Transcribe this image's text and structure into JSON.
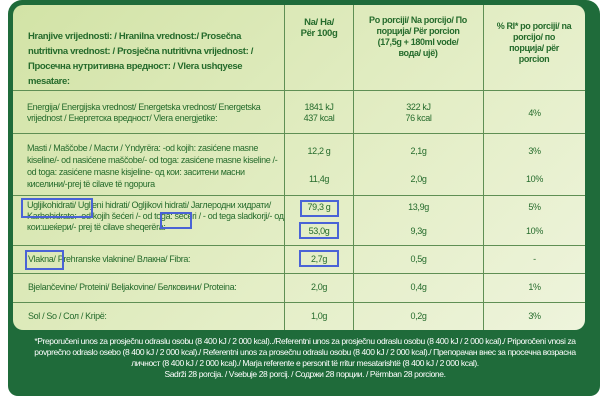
{
  "header": {
    "label": "Hranjive vrijednosti: / Hranilna  vrednost:/ Prosečna nutritivna  vrednost: / Prosječna nutritivna  vrijednost: / Просечна нутритивна  вредност: / Vlera ushqyese mesatare:",
    "per100": "Na/ Ha/ Për 100g",
    "perPortion": "Po porciji/ Na porcijo/ По порција/ Për porcion (17,5g + 180ml vode/ вода/ ujë)",
    "ri": "% RI* po porciji/ na porcijo/ по порција/ për porcion"
  },
  "rows": [
    {
      "label": "Energija/ Energijska vrednost/ Energetska vrednost/ Energetska vrijednost / Енергетска вредност/ Vlera energjetike:",
      "per100": "1841 kJ\n437 kcal",
      "portion": "322 kJ\n76 kcal",
      "ri": "4%"
    },
    {
      "label": "Masti / Maščobe / Масти / Yndyrëra: -od kojih: zasićene masne kiseline/- od nasićene maščobe/- od toga: zasićene masne kiseline /- od toga: zasićene masne kisjeline- од кои: заситени масни киселини/-prej të cilave të ngopura",
      "per100": "12,2 g",
      "portion": "2,1g",
      "ri": "3%",
      "per100b": "11,4g",
      "portionb": "2,0g",
      "rib": "10%"
    },
    {
      "label": "Ugljikohidrati/ Ugljeni hidrati/ Ogljikovi hidrati/ Јаглеродни хидрати/ Karbohidrate: -od kojih šećeri /- od toga: šećeri / - od  tega sladkorji/- од кои:шеќери/- prej të cilave sheqerëra:",
      "per100": "79,3 g",
      "portion": "13,9g",
      "ri": "5%",
      "per100b": "53,0g",
      "portionb": "9,3g",
      "rib": "10%"
    },
    {
      "label": "Vlakna/ Prehranske vlaknine/ Влакна/ Fibra:",
      "per100": "2,7g",
      "portion": "0,5g",
      "ri": "-"
    },
    {
      "label": "Bjelančevine/ Proteini/ Beljakovine/ Белковини/ Proteina:",
      "per100": "2,0g",
      "portion": "0,4g",
      "ri": "1%"
    },
    {
      "label": "Sol / So / Сол / Kripë:",
      "per100": "1,0g",
      "portion": "0,2g",
      "ri": "3%"
    }
  ],
  "footer": {
    "note": "*Preporučeni unos za prosječnu odraslu osobu (8 400 kJ / 2 000 kcal)../Referentni unos za prosječnu odraslu osobu (8 400 kJ / 2 000 kcal)./  Priporočeni vnosi za povprečno odraslo osebo (8 400 kJ / 2 000 kcal)./ Referentni unos za prosečnu odraslu osobu (8 400 kJ / 2 000 kcal)./ Препорачан внес за просечна возрасна личност (8 400 kJ / 2 000 kcal)./ Marja referente e personit të rritur mesatarishtë  (8 400 kJ / 2 000 kcal).",
    "portions": "Sadrži 28 porcija. / Vsebuje 28 porcij. / Содржи 28 порции. / Përmban 28 porcione."
  },
  "colors": {
    "frame": "#1f6b3a",
    "text": "#256b2c",
    "highlight": "#4a63d6"
  }
}
